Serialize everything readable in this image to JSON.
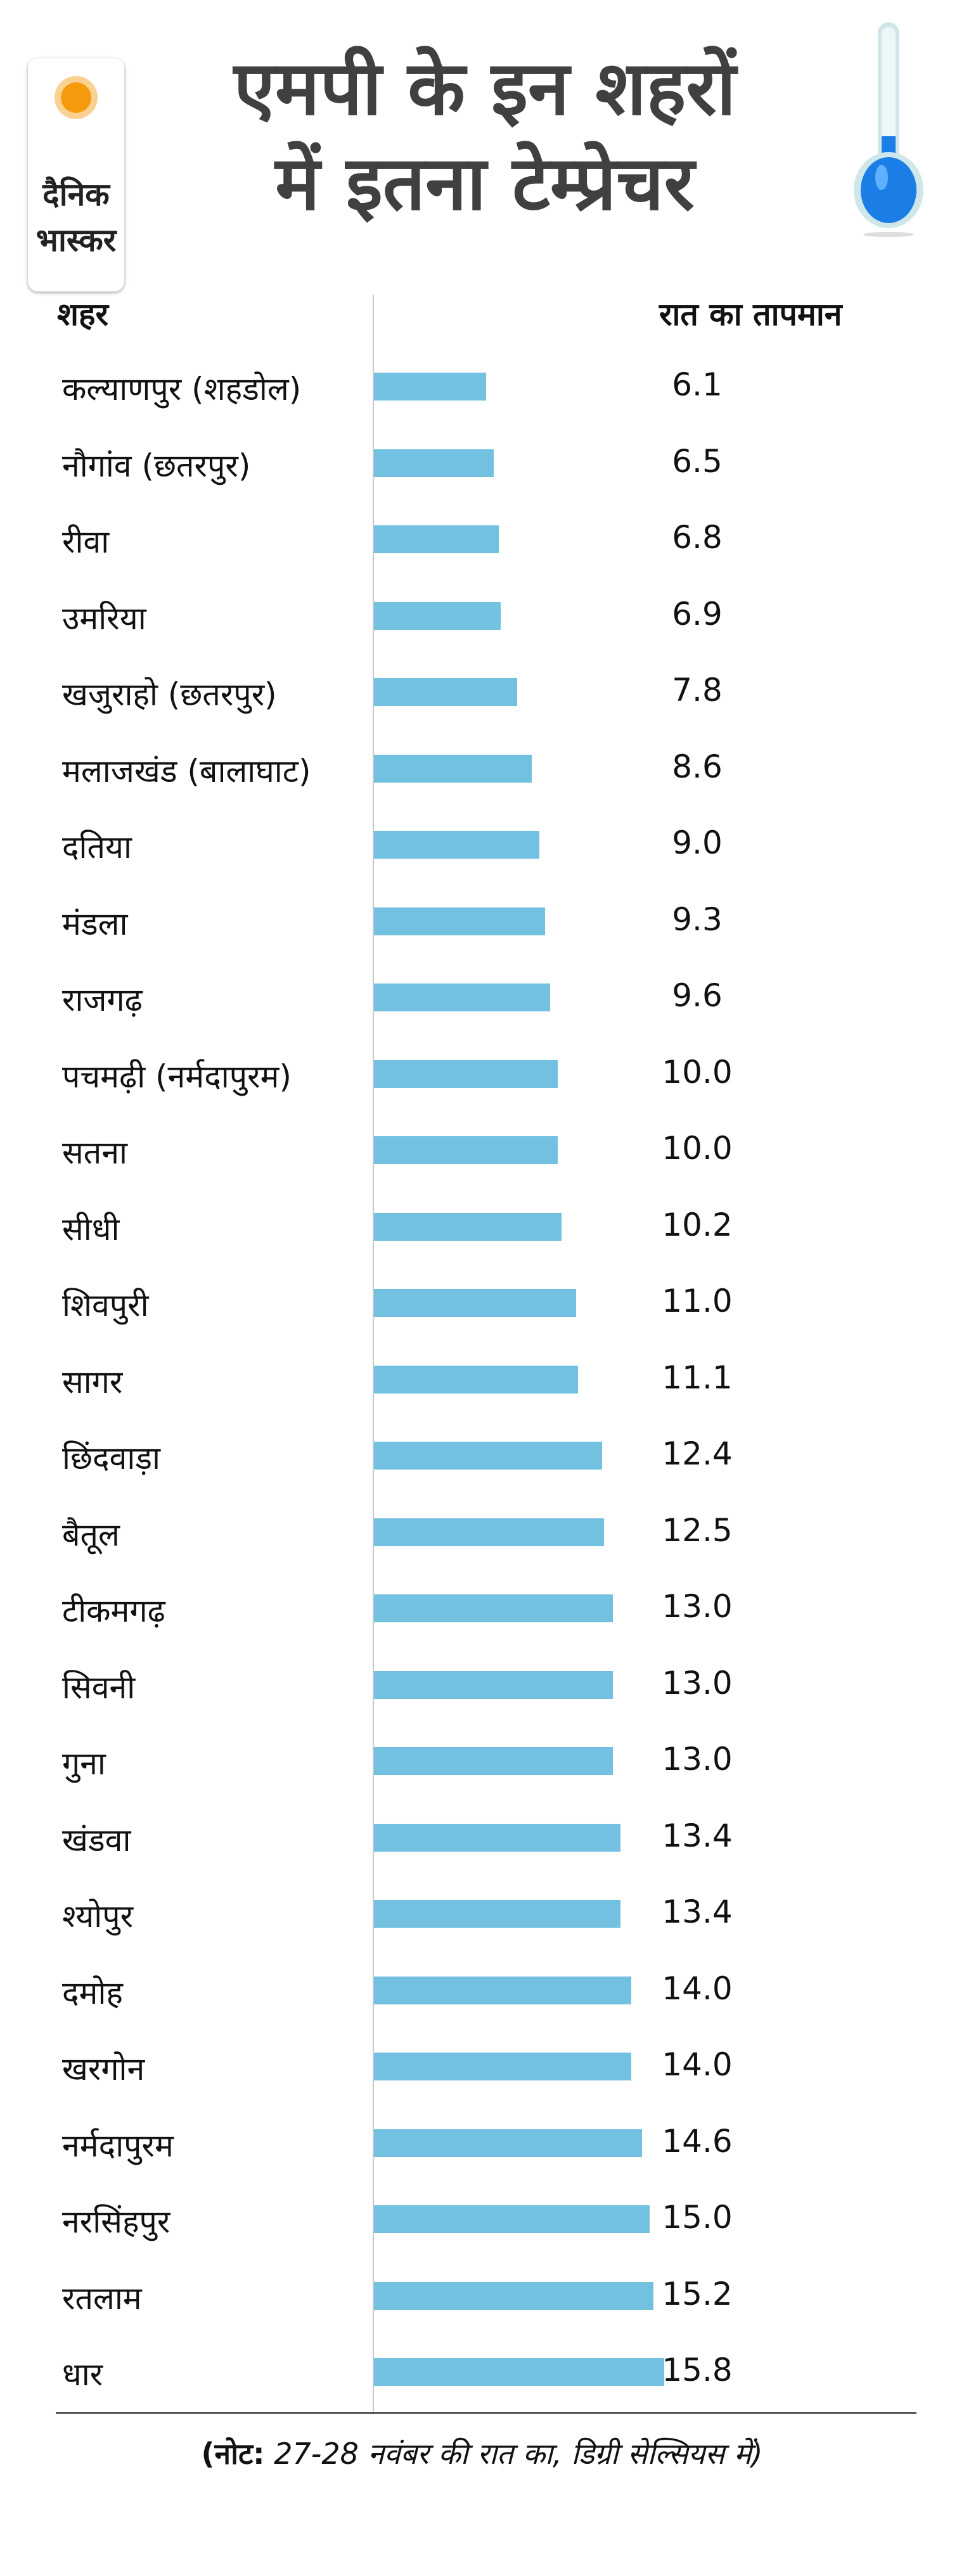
{
  "logo": {
    "line1": "दैनिक",
    "line2": "भास्कर"
  },
  "title": {
    "line1": "एमपी के इन शहरों",
    "line2": "में इतना टेम्प्रेचर"
  },
  "icons": [
    "sun-icon",
    "thermometer-icon"
  ],
  "colors": {
    "bar": "#72c1e0",
    "title": "#404040",
    "sun": "#f59a0c",
    "mercury": "#1a7ee6"
  },
  "chart_data": {
    "type": "bar",
    "orientation": "horizontal",
    "xlabel": "शहर",
    "ylabel": "रात का तापमान",
    "categories": [
      "कल्याणपुर (शहडोल)",
      "नौगांव (छतरपुर)",
      "रीवा",
      "उमरिया",
      "खजुराहो (छतरपुर)",
      "मलाजखंड (बालाघाट)",
      "दतिया",
      "मंडला",
      "राजगढ़",
      "पचमढ़ी (नर्मदापुरम)",
      "सतना",
      "सीधी",
      "शिवपुरी",
      "सागर",
      "छिंदवाड़ा",
      "बैतूल",
      "टीकमगढ़",
      "सिवनी",
      "गुना",
      "खंडवा",
      "श्योपुर",
      "दमोह",
      "खरगोन",
      "नर्मदापुरम",
      "नरसिंहपुर",
      "रतलाम",
      "धार"
    ],
    "values": [
      6.1,
      6.5,
      6.8,
      6.9,
      7.8,
      8.6,
      9.0,
      9.3,
      9.6,
      10.0,
      10.0,
      10.2,
      11.0,
      11.1,
      12.4,
      12.5,
      13.0,
      13.0,
      13.0,
      13.4,
      13.4,
      14.0,
      14.0,
      14.6,
      15.0,
      15.2,
      15.8
    ],
    "labels": [
      "6.1",
      "6.5",
      "6.8",
      "6.9",
      "7.8",
      "8.6",
      "9.0",
      "9.3",
      "9.6",
      "10.0",
      "10.0",
      "10.2",
      "11.0",
      "11.1",
      "12.4",
      "12.5",
      "13.0",
      "13.0",
      "13.0",
      "13.4",
      "13.4",
      "14.0",
      "14.0",
      "14.6",
      "15.0",
      "15.2",
      "15.8"
    ],
    "xlim": [
      0,
      16
    ]
  },
  "note": {
    "bold": "(नोट:",
    "rest": " 27-28 नवंबर की रात का, डिग्री सेल्सियस में)"
  }
}
